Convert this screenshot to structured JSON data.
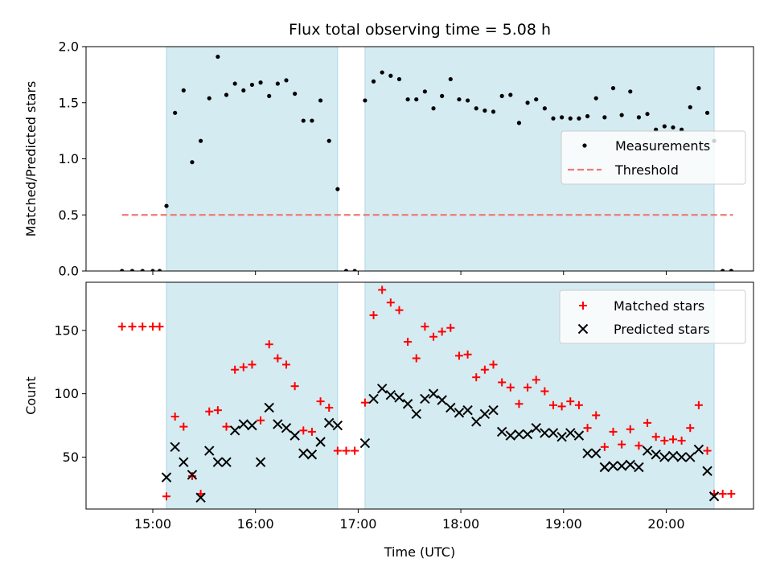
{
  "chart_data": [
    {
      "type": "scatter",
      "title": "Flux total observing time = 5.08 h",
      "ylabel": "Matched/Predicted stars",
      "xlabel": "",
      "ylim": [
        0,
        2.0
      ],
      "yticks": [
        {
          "value": 0.0,
          "label": "0.0"
        },
        {
          "value": 0.5,
          "label": "0.5"
        },
        {
          "value": 1.0,
          "label": "1.0"
        },
        {
          "value": 1.5,
          "label": "1.5"
        },
        {
          "value": 2.0,
          "label": "2.0"
        }
      ],
      "shaded_regions": [
        [
          "15:08",
          "16:48"
        ],
        [
          "17:04",
          "20:28"
        ]
      ],
      "legend_position": "center-right",
      "legend": [
        {
          "label": "Measurements",
          "marker": "dot",
          "color": "#000000"
        },
        {
          "label": "Threshold",
          "marker": "dashed-line",
          "color": "#f07878"
        }
      ],
      "threshold": {
        "label": "Threshold",
        "value": 0.5,
        "x_range": [
          "14:42",
          "20:39"
        ],
        "color": "#f07878"
      },
      "series": [
        {
          "name": "Measurements",
          "color": "#000000",
          "points": [
            [
              "14:42",
              0.0
            ],
            [
              "14:48",
              0.0
            ],
            [
              "14:54",
              0.0
            ],
            [
              "15:00",
              0.0
            ],
            [
              "15:04",
              0.0
            ],
            [
              "15:08",
              0.58
            ],
            [
              "15:13",
              1.41
            ],
            [
              "15:18",
              1.61
            ],
            [
              "15:23",
              0.97
            ],
            [
              "15:28",
              1.16
            ],
            [
              "15:33",
              1.54
            ],
            [
              "15:38",
              1.91
            ],
            [
              "15:43",
              1.57
            ],
            [
              "15:48",
              1.67
            ],
            [
              "15:53",
              1.61
            ],
            [
              "15:58",
              1.66
            ],
            [
              "16:03",
              1.68
            ],
            [
              "16:08",
              1.56
            ],
            [
              "16:13",
              1.67
            ],
            [
              "16:18",
              1.7
            ],
            [
              "16:23",
              1.58
            ],
            [
              "16:28",
              1.34
            ],
            [
              "16:33",
              1.34
            ],
            [
              "16:38",
              1.52
            ],
            [
              "16:43",
              1.16
            ],
            [
              "16:48",
              0.73
            ],
            [
              "16:53",
              0.0
            ],
            [
              "16:58",
              0.0
            ],
            [
              "17:04",
              1.52
            ],
            [
              "17:09",
              1.69
            ],
            [
              "17:14",
              1.77
            ],
            [
              "17:19",
              1.74
            ],
            [
              "17:24",
              1.71
            ],
            [
              "17:29",
              1.53
            ],
            [
              "17:34",
              1.53
            ],
            [
              "17:39",
              1.6
            ],
            [
              "17:44",
              1.45
            ],
            [
              "17:49",
              1.56
            ],
            [
              "17:54",
              1.71
            ],
            [
              "17:59",
              1.53
            ],
            [
              "18:04",
              1.52
            ],
            [
              "18:09",
              1.45
            ],
            [
              "18:14",
              1.43
            ],
            [
              "18:19",
              1.42
            ],
            [
              "18:24",
              1.56
            ],
            [
              "18:29",
              1.57
            ],
            [
              "18:34",
              1.32
            ],
            [
              "18:39",
              1.5
            ],
            [
              "18:44",
              1.53
            ],
            [
              "18:49",
              1.45
            ],
            [
              "18:54",
              1.36
            ],
            [
              "18:59",
              1.37
            ],
            [
              "19:04",
              1.36
            ],
            [
              "19:09",
              1.36
            ],
            [
              "19:14",
              1.38
            ],
            [
              "19:19",
              1.54
            ],
            [
              "19:24",
              1.37
            ],
            [
              "19:29",
              1.63
            ],
            [
              "19:34",
              1.39
            ],
            [
              "19:39",
              1.6
            ],
            [
              "19:44",
              1.37
            ],
            [
              "19:49",
              1.4
            ],
            [
              "19:54",
              1.26
            ],
            [
              "19:59",
              1.29
            ],
            [
              "20:04",
              1.28
            ],
            [
              "20:09",
              1.26
            ],
            [
              "20:14",
              1.46
            ],
            [
              "20:19",
              1.63
            ],
            [
              "20:24",
              1.41
            ],
            [
              "20:28",
              1.16
            ],
            [
              "20:33",
              0.0
            ],
            [
              "20:38",
              0.0
            ]
          ]
        }
      ]
    },
    {
      "type": "scatter",
      "title": "",
      "ylabel": "Count",
      "xlabel": "Time (UTC)",
      "xlim": [
        "14:21",
        "20:51"
      ],
      "xticks": [
        "15:00",
        "16:00",
        "17:00",
        "18:00",
        "19:00",
        "20:00"
      ],
      "ylim": [
        9,
        188
      ],
      "yticks": [
        {
          "value": 50,
          "label": "50"
        },
        {
          "value": 100,
          "label": "100"
        },
        {
          "value": 150,
          "label": "150"
        }
      ],
      "shaded_regions": [
        [
          "15:08",
          "16:48"
        ],
        [
          "17:04",
          "20:28"
        ]
      ],
      "legend_position": "top-right",
      "legend": [
        {
          "label": "Matched stars",
          "marker": "plus",
          "color": "#ff0000"
        },
        {
          "label": "Predicted stars",
          "marker": "x",
          "color": "#000000"
        }
      ],
      "series": [
        {
          "name": "Matched stars",
          "marker": "plus",
          "color": "#ff0000",
          "points": [
            [
              "14:42",
              153
            ],
            [
              "14:48",
              153
            ],
            [
              "14:54",
              153
            ],
            [
              "15:00",
              153
            ],
            [
              "15:04",
              153
            ],
            [
              "15:08",
              19
            ],
            [
              "15:13",
              82
            ],
            [
              "15:18",
              74
            ],
            [
              "15:23",
              35
            ],
            [
              "15:28",
              21
            ],
            [
              "15:33",
              86
            ],
            [
              "15:38",
              87
            ],
            [
              "15:43",
              74
            ],
            [
              "15:48",
              119
            ],
            [
              "15:53",
              121
            ],
            [
              "15:58",
              123
            ],
            [
              "16:03",
              79
            ],
            [
              "16:08",
              139
            ],
            [
              "16:13",
              128
            ],
            [
              "16:18",
              123
            ],
            [
              "16:23",
              106
            ],
            [
              "16:28",
              71
            ],
            [
              "16:33",
              70
            ],
            [
              "16:38",
              94
            ],
            [
              "16:43",
              89
            ],
            [
              "16:48",
              55
            ],
            [
              "16:53",
              55
            ],
            [
              "16:58",
              55
            ],
            [
              "17:04",
              93
            ],
            [
              "17:09",
              162
            ],
            [
              "17:14",
              182
            ],
            [
              "17:19",
              172
            ],
            [
              "17:24",
              166
            ],
            [
              "17:29",
              141
            ],
            [
              "17:34",
              128
            ],
            [
              "17:39",
              153
            ],
            [
              "17:44",
              145
            ],
            [
              "17:49",
              149
            ],
            [
              "17:54",
              152
            ],
            [
              "17:59",
              130
            ],
            [
              "18:04",
              131
            ],
            [
              "18:09",
              113
            ],
            [
              "18:14",
              119
            ],
            [
              "18:19",
              123
            ],
            [
              "18:24",
              109
            ],
            [
              "18:29",
              105
            ],
            [
              "18:34",
              92
            ],
            [
              "18:39",
              105
            ],
            [
              "18:44",
              111
            ],
            [
              "18:49",
              102
            ],
            [
              "18:54",
              91
            ],
            [
              "18:59",
              90
            ],
            [
              "19:04",
              94
            ],
            [
              "19:09",
              91
            ],
            [
              "19:14",
              73
            ],
            [
              "19:19",
              83
            ],
            [
              "19:24",
              58
            ],
            [
              "19:29",
              70
            ],
            [
              "19:34",
              60
            ],
            [
              "19:39",
              72
            ],
            [
              "19:44",
              59
            ],
            [
              "19:49",
              77
            ],
            [
              "19:54",
              66
            ],
            [
              "19:59",
              63
            ],
            [
              "20:04",
              64
            ],
            [
              "20:09",
              63
            ],
            [
              "20:14",
              73
            ],
            [
              "20:19",
              91
            ],
            [
              "20:24",
              55
            ],
            [
              "20:28",
              21
            ],
            [
              "20:33",
              21
            ],
            [
              "20:38",
              21
            ]
          ]
        },
        {
          "name": "Predicted stars",
          "marker": "x",
          "color": "#000000",
          "points": [
            [
              "15:08",
              34
            ],
            [
              "15:13",
              58
            ],
            [
              "15:18",
              46
            ],
            [
              "15:23",
              36
            ],
            [
              "15:28",
              18
            ],
            [
              "15:33",
              55
            ],
            [
              "15:38",
              46
            ],
            [
              "15:43",
              46
            ],
            [
              "15:48",
              71
            ],
            [
              "15:53",
              76
            ],
            [
              "15:58",
              75
            ],
            [
              "16:03",
              46
            ],
            [
              "16:08",
              89
            ],
            [
              "16:13",
              76
            ],
            [
              "16:18",
              73
            ],
            [
              "16:23",
              67
            ],
            [
              "16:28",
              53
            ],
            [
              "16:33",
              52
            ],
            [
              "16:38",
              62
            ],
            [
              "16:43",
              77
            ],
            [
              "16:48",
              75
            ],
            [
              "17:04",
              61
            ],
            [
              "17:09",
              96
            ],
            [
              "17:14",
              104
            ],
            [
              "17:19",
              99
            ],
            [
              "17:24",
              97
            ],
            [
              "17:29",
              92
            ],
            [
              "17:34",
              84
            ],
            [
              "17:39",
              96
            ],
            [
              "17:44",
              100
            ],
            [
              "17:49",
              95
            ],
            [
              "17:54",
              89
            ],
            [
              "17:59",
              85
            ],
            [
              "18:04",
              87
            ],
            [
              "18:09",
              78
            ],
            [
              "18:14",
              84
            ],
            [
              "18:19",
              87
            ],
            [
              "18:24",
              70
            ],
            [
              "18:29",
              67
            ],
            [
              "18:34",
              68
            ],
            [
              "18:39",
              68
            ],
            [
              "18:44",
              73
            ],
            [
              "18:49",
              69
            ],
            [
              "18:54",
              69
            ],
            [
              "18:59",
              66
            ],
            [
              "19:04",
              69
            ],
            [
              "19:09",
              67
            ],
            [
              "19:14",
              53
            ],
            [
              "19:19",
              53
            ],
            [
              "19:24",
              42
            ],
            [
              "19:29",
              43
            ],
            [
              "19:34",
              43
            ],
            [
              "19:39",
              44
            ],
            [
              "19:44",
              42
            ],
            [
              "19:49",
              55
            ],
            [
              "19:54",
              52
            ],
            [
              "19:59",
              50
            ],
            [
              "20:04",
              51
            ],
            [
              "20:09",
              50
            ],
            [
              "20:14",
              50
            ],
            [
              "20:19",
              56
            ],
            [
              "20:24",
              39
            ],
            [
              "20:28",
              19
            ]
          ]
        }
      ]
    }
  ],
  "colors": {
    "shade": "#d4ebf1",
    "shade_edge": "#add8e6",
    "matched": "#ff0000",
    "predicted": "#000000",
    "measurement": "#000000",
    "threshold": "#f07878"
  }
}
